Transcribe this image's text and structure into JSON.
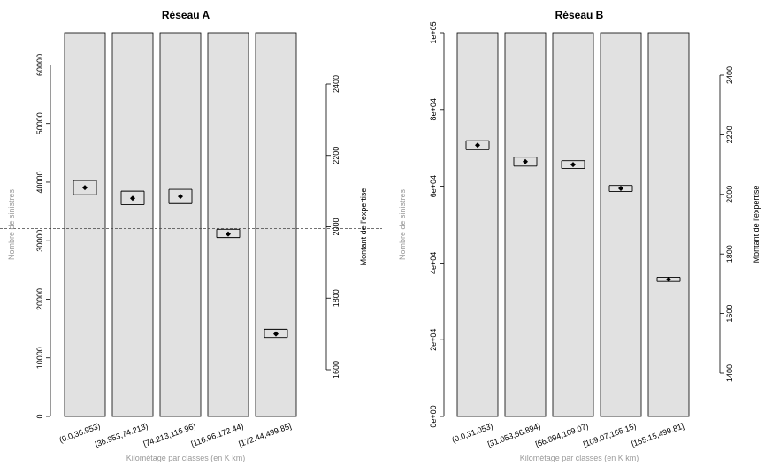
{
  "colors": {
    "bar_fill": "#e1e1e1",
    "bar_stroke": "#000000",
    "point": "#000000",
    "ref_line": "#444444",
    "left_axis_label": "#9a9a9a"
  },
  "chart_data": [
    {
      "type": "bar",
      "title": "Réseau A",
      "xlabel": "Kilométage par classes (en K km)",
      "ylabel": "Nombre de sinistres",
      "y2label": "Montant de l'expertise",
      "categories": [
        "(0.0,36.953)",
        "[36.953,74.213)",
        "[74.213,116.96)",
        "[116.96,172.44)",
        "[172.44,499.85]"
      ],
      "values": [
        65500,
        65500,
        65500,
        65500,
        65500
      ],
      "ylim": [
        0,
        65500
      ],
      "yticks": [
        0,
        10000,
        20000,
        30000,
        40000,
        50000,
        60000
      ],
      "ytick_labels": [
        "0",
        "10000",
        "20000",
        "30000",
        "40000",
        "50000",
        "60000"
      ],
      "y2lim": [
        1600,
        2400
      ],
      "y2ticks": [
        1600,
        1800,
        2000,
        2200,
        2400
      ],
      "y2tick_labels": [
        "1600",
        "1800",
        "2000",
        "2200",
        "2400"
      ],
      "y2_visible_range": [
        1600,
        2400
      ],
      "mean_amount": [
        2110,
        2080,
        2085,
        1980,
        1700
      ],
      "amount_ci_low": [
        2090,
        2062,
        2065,
        1970,
        1690
      ],
      "amount_ci_high": [
        2130,
        2100,
        2105,
        1993,
        1713
      ],
      "reference_amount": 1995
    },
    {
      "type": "bar",
      "title": "Réseau B",
      "xlabel": "Kilométage par classes (en K km)",
      "ylabel": "Nombre de sinistres",
      "y2label": "Montant de l'expertise",
      "categories": [
        "(0.0,31.053)",
        "[31.053,66.894)",
        "[66.894,109.07)",
        "[109.07,165.15)",
        "[165.15,499.81]"
      ],
      "values": [
        100000,
        100000,
        100000,
        100000,
        100000
      ],
      "ylim": [
        0,
        100000
      ],
      "yticks": [
        0,
        20000,
        40000,
        60000,
        80000,
        100000
      ],
      "ytick_labels": [
        "0e+00",
        "2e+04",
        "4e+04",
        "6e+04",
        "8e+04",
        "1e+05"
      ],
      "y2lim": [
        1400,
        2400
      ],
      "y2ticks": [
        1400,
        1600,
        1800,
        2000,
        2200,
        2400
      ],
      "y2tick_labels": [
        "1400",
        "1600",
        "1800",
        "2000",
        "2200",
        "2400"
      ],
      "y2_visible_range": [
        1400,
        2400
      ],
      "mean_amount": [
        2165,
        2110,
        2100,
        2020,
        1715
      ],
      "amount_ci_low": [
        2150,
        2095,
        2087,
        2010,
        1708
      ],
      "amount_ci_high": [
        2180,
        2125,
        2113,
        2030,
        1722
      ],
      "reference_amount": 2025
    }
  ]
}
